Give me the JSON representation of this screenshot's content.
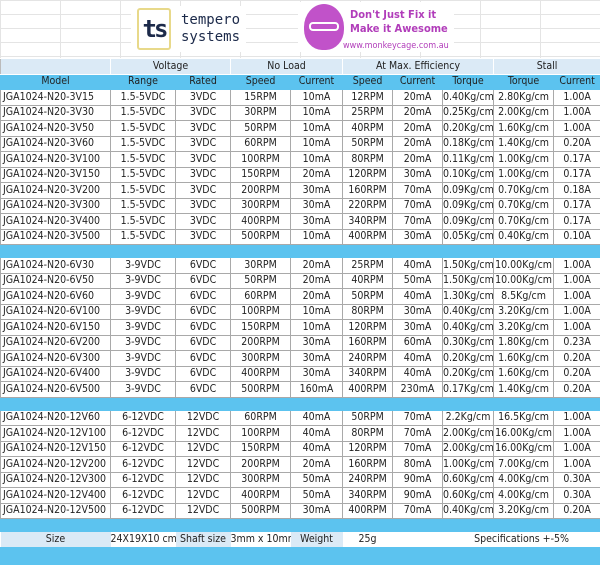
{
  "logos": {
    "tempero": {
      "mark": "ts",
      "line1": "tempero",
      "line2": "systems"
    },
    "monkeycage": {
      "line1": "Don't Just Fix it",
      "line2": "Make it Awesome",
      "url": "www.monkeycage.com.au"
    }
  },
  "groups": [
    "",
    "Voltage",
    "No Load",
    "At Max. Efficiency",
    "Stall"
  ],
  "headers": [
    "Model",
    "Range",
    "Rated",
    "Speed",
    "Current",
    "Speed",
    "Current",
    "Torque",
    "Torque",
    "Current"
  ],
  "sections": [
    [
      [
        "JGA1024-N20-3V15",
        "1.5-5VDC",
        "3VDC",
        "15RPM",
        "10mA",
        "12RPM",
        "20mA",
        "0.40Kg/cm",
        "2.80Kg/cm",
        "1.00A"
      ],
      [
        "JGA1024-N20-3V30",
        "1.5-5VDC",
        "3VDC",
        "30RPM",
        "10mA",
        "25RPM",
        "20mA",
        "0.25Kg/cm",
        "2.00Kg/cm",
        "1.00A"
      ],
      [
        "JGA1024-N20-3V50",
        "1.5-5VDC",
        "3VDC",
        "50RPM",
        "10mA",
        "40RPM",
        "20mA",
        "0.20Kg/cm",
        "1.60Kg/cm",
        "1.00A"
      ],
      [
        "JGA1024-N20-3V60",
        "1.5-5VDC",
        "3VDC",
        "60RPM",
        "10mA",
        "50RPM",
        "20mA",
        "0.18Kg/cm",
        "1.40Kg/cm",
        "0.20A"
      ],
      [
        "JGA1024-N20-3V100",
        "1.5-5VDC",
        "3VDC",
        "100RPM",
        "10mA",
        "80RPM",
        "20mA",
        "0.11Kg/cm",
        "1.00Kg/cm",
        "0.17A"
      ],
      [
        "JGA1024-N20-3V150",
        "1.5-5VDC",
        "3VDC",
        "150RPM",
        "20mA",
        "120RPM",
        "30mA",
        "0.10Kg/cm",
        "1.00Kg/cm",
        "0.17A"
      ],
      [
        "JGA1024-N20-3V200",
        "1.5-5VDC",
        "3VDC",
        "200RPM",
        "30mA",
        "160RPM",
        "70mA",
        "0.09Kg/cm",
        "0.70Kg/cm",
        "0.18A"
      ],
      [
        "JGA1024-N20-3V300",
        "1.5-5VDC",
        "3VDC",
        "300RPM",
        "30mA",
        "220RPM",
        "70mA",
        "0.09Kg/cm",
        "0.70Kg/cm",
        "0.17A"
      ],
      [
        "JGA1024-N20-3V400",
        "1.5-5VDC",
        "3VDC",
        "400RPM",
        "30mA",
        "340RPM",
        "70mA",
        "0.09Kg/cm",
        "0.70Kg/cm",
        "0.17A"
      ],
      [
        "JGA1024-N20-3V500",
        "1.5-5VDC",
        "3VDC",
        "500RPM",
        "10mA",
        "400RPM",
        "30mA",
        "0.05Kg/cm",
        "0.40Kg/cm",
        "0.10A"
      ]
    ],
    [
      [
        "JGA1024-N20-6V30",
        "3-9VDC",
        "6VDC",
        "30RPM",
        "20mA",
        "25RPM",
        "40mA",
        "1.50Kg/cm",
        "10.00Kg/cm",
        "1.00A"
      ],
      [
        "JGA1024-N20-6V50",
        "3-9VDC",
        "6VDC",
        "50RPM",
        "20mA",
        "40RPM",
        "50mA",
        "1.50Kg/cm",
        "10.00Kg/cm",
        "1.00A"
      ],
      [
        "JGA1024-N20-6V60",
        "3-9VDC",
        "6VDC",
        "60RPM",
        "20mA",
        "50RPM",
        "40mA",
        "1.30Kg/cm",
        "8.5Kg/cm",
        "1.00A"
      ],
      [
        "JGA1024-N20-6V100",
        "3-9VDC",
        "6VDC",
        "100RPM",
        "10mA",
        "80RPM",
        "30mA",
        "0.40Kg/cm",
        "3.20Kg/cm",
        "1.00A"
      ],
      [
        "JGA1024-N20-6V150",
        "3-9VDC",
        "6VDC",
        "150RPM",
        "10mA",
        "120RPM",
        "30mA",
        "0.40Kg/cm",
        "3.20Kg/cm",
        "1.00A"
      ],
      [
        "JGA1024-N20-6V200",
        "3-9VDC",
        "6VDC",
        "200RPM",
        "30mA",
        "160RPM",
        "60mA",
        "0.30Kg/cm",
        "1.80Kg/cm",
        "0.23A"
      ],
      [
        "JGA1024-N20-6V300",
        "3-9VDC",
        "6VDC",
        "300RPM",
        "30mA",
        "240RPM",
        "40mA",
        "0.20Kg/cm",
        "1.60Kg/cm",
        "0.20A"
      ],
      [
        "JGA1024-N20-6V400",
        "3-9VDC",
        "6VDC",
        "400RPM",
        "30mA",
        "340RPM",
        "40mA",
        "0.20Kg/cm",
        "1.60Kg/cm",
        "0.20A"
      ],
      [
        "JGA1024-N20-6V500",
        "3-9VDC",
        "6VDC",
        "500RPM",
        "160mA",
        "400RPM",
        "230mA",
        "0.17Kg/cm",
        "1.40Kg/cm",
        "0.20A"
      ]
    ],
    [
      [
        "JGA1024-N20-12V60",
        "6-12VDC",
        "12VDC",
        "60RPM",
        "40mA",
        "50RPM",
        "70mA",
        "2.2Kg/cm",
        "16.5Kg/cm",
        "1.00A"
      ],
      [
        "JGA1024-N20-12V100",
        "6-12VDC",
        "12VDC",
        "100RPM",
        "40mA",
        "80RPM",
        "70mA",
        "2.00Kg/cm",
        "16.00Kg/cm",
        "1.00A"
      ],
      [
        "JGA1024-N20-12V150",
        "6-12VDC",
        "12VDC",
        "150RPM",
        "40mA",
        "120RPM",
        "70mA",
        "2.00Kg/cm",
        "16.00Kg/cm",
        "1.00A"
      ],
      [
        "JGA1024-N20-12V200",
        "6-12VDC",
        "12VDC",
        "200RPM",
        "20mA",
        "160RPM",
        "80mA",
        "1.00Kg/cm",
        "7.00Kg/cm",
        "1.00A"
      ],
      [
        "JGA1024-N20-12V300",
        "6-12VDC",
        "12VDC",
        "300RPM",
        "50mA",
        "240RPM",
        "90mA",
        "0.60Kg/cm",
        "4.00Kg/cm",
        "0.30A"
      ],
      [
        "JGA1024-N20-12V400",
        "6-12VDC",
        "12VDC",
        "400RPM",
        "50mA",
        "340RPM",
        "90mA",
        "0.60Kg/cm",
        "4.00Kg/cm",
        "0.30A"
      ],
      [
        "JGA1024-N20-12V500",
        "6-12VDC",
        "12VDC",
        "500RPM",
        "30mA",
        "400RPM",
        "70mA",
        "0.40Kg/cm",
        "3.20Kg/cm",
        "0.20A"
      ]
    ]
  ],
  "footer": {
    "size_label": "Size",
    "size_value": "24X19X10 cm",
    "shaft_label": "Shaft size",
    "shaft_value": "3mm x 10mm",
    "weight_label": "Weight",
    "weight_value": "25g",
    "note": "Specifications +-5%"
  },
  "colors": {
    "header_blue": "#5cc3ef",
    "group_light": "#dbeaf6",
    "brand_purple": "#b13dba"
  }
}
